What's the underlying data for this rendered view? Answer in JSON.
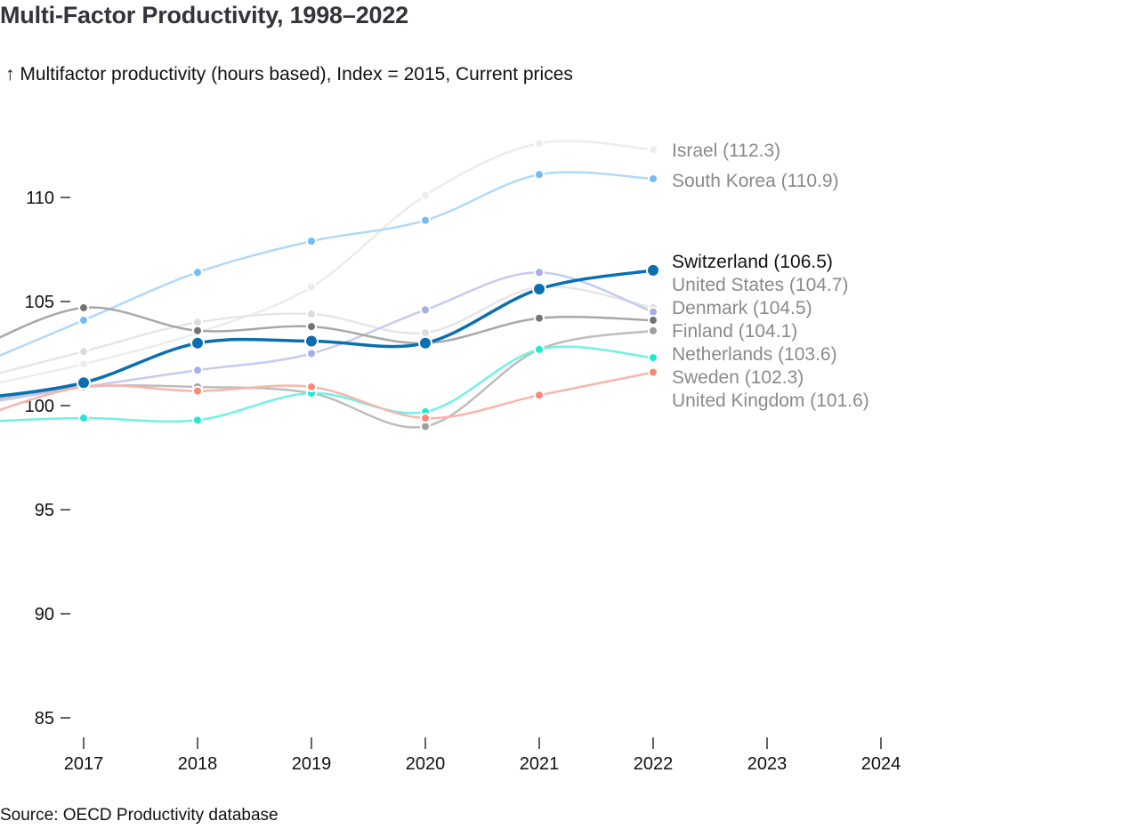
{
  "header": {
    "title": "Multi-Factor Productivity, 1998–2022",
    "subtitle": "↑ Multifactor productivity (hours based), Index = 2015, Current prices"
  },
  "footer": {
    "source": "Source: OECD Productivity database"
  },
  "chart_data": {
    "type": "line",
    "title": "Multi-Factor Productivity, 1998–2022",
    "ylabel": "Multifactor productivity (hours based), Index = 2015, Current prices",
    "xlabel": "",
    "x": [
      2016,
      2017,
      2018,
      2019,
      2020,
      2021,
      2022
    ],
    "xlim": [
      2016.27,
      2024
    ],
    "ylim": [
      84,
      114
    ],
    "xticks": [
      2017,
      2018,
      2019,
      2020,
      2021,
      2022,
      2023,
      2024
    ],
    "xtick_labels": [
      "2017",
      "2018",
      "2019",
      "2020",
      "2021",
      "2022",
      "2023",
      "2024"
    ],
    "yticks": [
      85,
      90,
      95,
      100,
      105,
      110
    ],
    "ytick_labels": [
      "85",
      "90",
      "95",
      "100",
      "105",
      "110"
    ],
    "grid": false,
    "legend": "direct-labels-right",
    "highlight": "Switzerland",
    "series": [
      {
        "name": "Israel",
        "label": "Israel (112.3)",
        "color": "#ececec",
        "values": [
          100.8,
          102.0,
          103.5,
          105.7,
          110.1,
          112.6,
          112.3
        ]
      },
      {
        "name": "South Korea",
        "label": "South Korea (110.9)",
        "color": "#74bcf5",
        "line_color": "#b1d9fa",
        "values": [
          101.8,
          104.1,
          106.4,
          107.9,
          108.9,
          111.1,
          110.9
        ]
      },
      {
        "name": "United States",
        "label": "United States (104.7)",
        "color": "#dcdcdc",
        "line_color": "#e6e6e6",
        "values": [
          101.2,
          102.6,
          104.0,
          104.4,
          103.5,
          105.7,
          104.7
        ]
      },
      {
        "name": "Denmark",
        "label": "Denmark (104.5)",
        "color": "#a5afe6",
        "line_color": "#c5cbf0",
        "values": [
          100.0,
          100.9,
          101.7,
          102.5,
          104.6,
          106.4,
          104.5
        ]
      },
      {
        "name": "Finland",
        "label": "Finland (104.1)",
        "color": "#737373",
        "line_color": "#a8a8a8",
        "values": [
          102.6,
          104.7,
          103.6,
          103.8,
          103.0,
          104.2,
          104.1
        ]
      },
      {
        "name": "Netherlands",
        "label": "Netherlands (103.6)",
        "color": "#9e9e9e",
        "line_color": "#bdbdbd",
        "values": [
          100.1,
          100.9,
          100.9,
          100.6,
          99.0,
          102.7,
          103.6
        ]
      },
      {
        "name": "Sweden",
        "label": "Sweden (102.3)",
        "color": "#1de9d0",
        "line_color": "#6ff2e2",
        "values": [
          99.2,
          99.4,
          99.3,
          100.6,
          99.7,
          102.7,
          102.3
        ]
      },
      {
        "name": "United Kingdom",
        "label": "United Kingdom (101.6)",
        "color": "#f88a77",
        "line_color": "#fab5a9",
        "values": [
          99.3,
          100.9,
          100.7,
          100.9,
          99.4,
          100.5,
          101.6
        ]
      },
      {
        "name": "Switzerland",
        "label": "Switzerland (106.5)",
        "color": "#0a6fb0",
        "line_color": "#0a6fb0",
        "values": [
          100.3,
          101.1,
          103.0,
          103.1,
          103.0,
          105.6,
          106.5
        ]
      }
    ],
    "end_labels_order": [
      "Israel (112.3)",
      "South Korea (110.9)",
      "Switzerland (106.5)",
      "United States (104.7)",
      "Denmark (104.5)",
      "Finland (104.1)",
      "Netherlands (103.6)",
      "Sweden (102.3)",
      "United Kingdom (101.6)"
    ]
  }
}
